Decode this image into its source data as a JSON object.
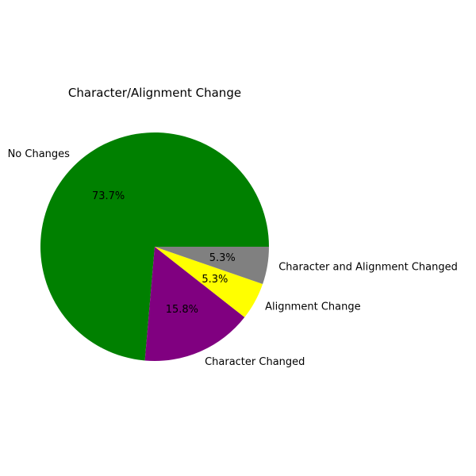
{
  "chart_data": {
    "type": "pie",
    "title": "Character/Alignment Change",
    "slices": [
      {
        "label": "No Changes",
        "value": 73.7,
        "pct_label": "73.7%",
        "color": "#008000"
      },
      {
        "label": "Character Changed",
        "value": 15.8,
        "pct_label": "15.8%",
        "color": "#800080"
      },
      {
        "label": "Alignment Change",
        "value": 5.3,
        "pct_label": "5.3%",
        "color": "#ffff00"
      },
      {
        "label": "Character and Alignment Changed",
        "value": 5.3,
        "pct_label": "5.3%",
        "color": "#808080"
      }
    ],
    "start_angle_deg": 0,
    "direction": "counterclockwise",
    "legend": "none"
  }
}
